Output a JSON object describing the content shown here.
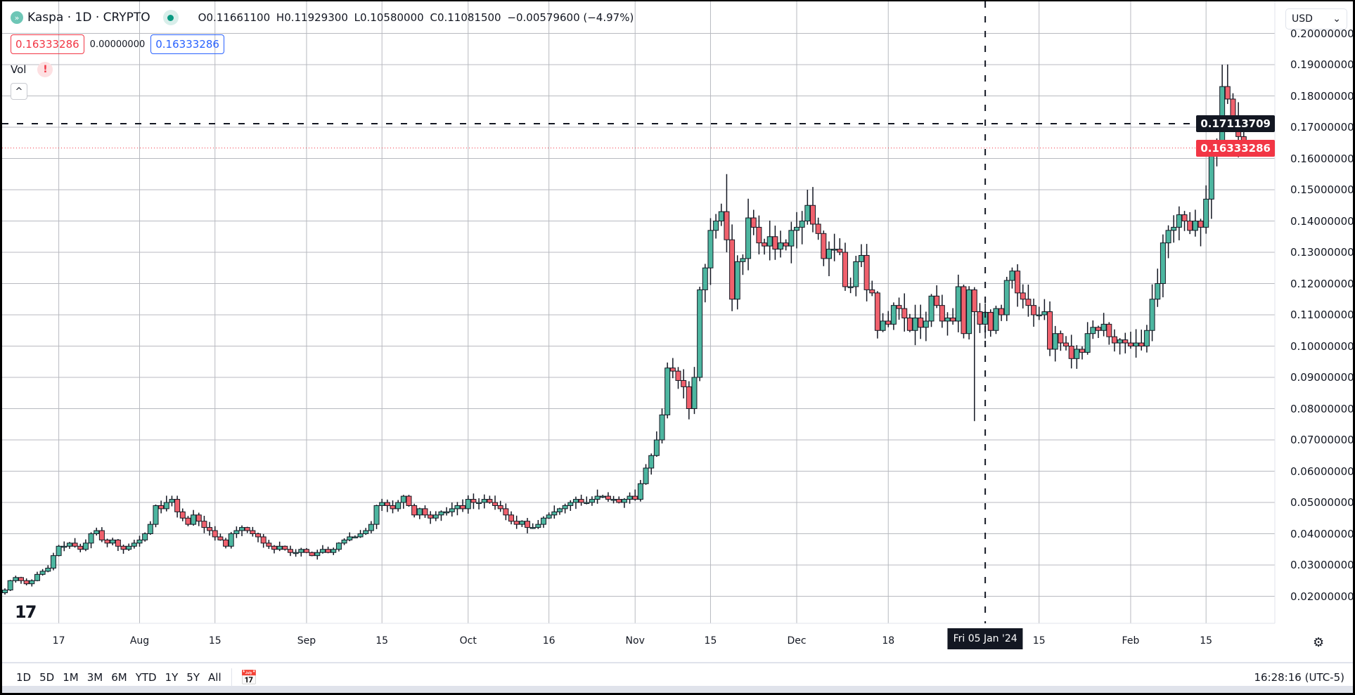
{
  "header": {
    "symbol": "Kaspa · 1D · CRYPTO",
    "ohlc": {
      "open": "O0.11661100",
      "high": "H0.11929300",
      "low": "L0.10580000",
      "close": "C0.11081500",
      "change": "−0.00579600 (−4.97%)"
    },
    "bid_badge": "0.16333286",
    "spread": "0.00000000",
    "ask_badge": "0.16333286",
    "indicator": "Vol",
    "indicator_warning": "!",
    "collapse": "^"
  },
  "price_axis": {
    "currency": "USD",
    "ticks": [
      "0.20000000",
      "0.19000000",
      "0.18000000",
      "0.17000000",
      "0.16000000",
      "0.15000000",
      "0.14000000",
      "0.13000000",
      "0.12000000",
      "0.11000000",
      "0.10000000",
      "0.09000000",
      "0.08000000",
      "0.07000000",
      "0.06000000",
      "0.05000000",
      "0.04000000",
      "0.03000000",
      "0.02000000"
    ],
    "crosshair_price": "0.17113709",
    "last_price": "0.16333286"
  },
  "time_axis": {
    "labels": [
      {
        "text": "17",
        "date": "2023-07-17"
      },
      {
        "text": "Aug",
        "date": "2023-08-01"
      },
      {
        "text": "15",
        "date": "2023-08-15"
      },
      {
        "text": "Sep",
        "date": "2023-09-01"
      },
      {
        "text": "15",
        "date": "2023-09-15"
      },
      {
        "text": "Oct",
        "date": "2023-10-01"
      },
      {
        "text": "16",
        "date": "2023-10-16"
      },
      {
        "text": "Nov",
        "date": "2023-11-01"
      },
      {
        "text": "15",
        "date": "2023-11-15"
      },
      {
        "text": "Dec",
        "date": "2023-12-01"
      },
      {
        "text": "18",
        "date": "2023-12-18"
      },
      {
        "text": "15",
        "date": "2024-01-15"
      },
      {
        "text": "Feb",
        "date": "2024-02-01"
      },
      {
        "text": "15",
        "date": "2024-02-15"
      }
    ],
    "crosshair_label": "Fri 05 Jan '24",
    "crosshair_date": "2024-01-05"
  },
  "toolbar": {
    "ranges": [
      "1D",
      "5D",
      "1M",
      "3M",
      "6M",
      "YTD",
      "1Y",
      "5Y",
      "All"
    ],
    "clock": "16:28:16 (UTC-5)"
  },
  "colors": {
    "up": "#4db6a0",
    "down": "#f0616d",
    "outline": "#131722",
    "last_price": "#f23645",
    "grid": "#b8bac0"
  },
  "icons": {
    "symbol": "kaspa-logo-icon",
    "market_status": "live-dot-icon",
    "goto_date": "calendar-goto-icon",
    "settings": "gear-icon",
    "logo": "tradingview-logo-icon"
  },
  "chart_data": {
    "type": "candlestick",
    "start_date": "2023-07-07",
    "interval": "1D",
    "ylim": [
      0.01,
      0.205
    ],
    "grid": true,
    "closes": [
      0.022,
      0.025,
      0.026,
      0.025,
      0.024,
      0.025,
      0.027,
      0.028,
      0.029,
      0.033,
      0.036,
      0.036,
      0.037,
      0.036,
      0.035,
      0.037,
      0.04,
      0.041,
      0.038,
      0.037,
      0.038,
      0.036,
      0.035,
      0.036,
      0.037,
      0.038,
      0.04,
      0.043,
      0.049,
      0.048,
      0.05,
      0.051,
      0.047,
      0.045,
      0.043,
      0.046,
      0.044,
      0.042,
      0.041,
      0.039,
      0.038,
      0.036,
      0.04,
      0.041,
      0.042,
      0.041,
      0.04,
      0.039,
      0.037,
      0.036,
      0.035,
      0.036,
      0.035,
      0.034,
      0.034,
      0.035,
      0.034,
      0.033,
      0.034,
      0.035,
      0.034,
      0.035,
      0.037,
      0.038,
      0.039,
      0.039,
      0.04,
      0.041,
      0.043,
      0.049,
      0.05,
      0.049,
      0.048,
      0.05,
      0.052,
      0.049,
      0.046,
      0.048,
      0.046,
      0.045,
      0.046,
      0.047,
      0.047,
      0.048,
      0.049,
      0.048,
      0.051,
      0.05,
      0.05,
      0.051,
      0.05,
      0.049,
      0.048,
      0.046,
      0.044,
      0.043,
      0.044,
      0.042,
      0.042,
      0.043,
      0.045,
      0.046,
      0.047,
      0.048,
      0.049,
      0.05,
      0.051,
      0.05,
      0.05,
      0.051,
      0.052,
      0.052,
      0.051,
      0.051,
      0.05,
      0.051,
      0.052,
      0.051,
      0.056,
      0.061,
      0.065,
      0.07,
      0.078,
      0.093,
      0.092,
      0.089,
      0.087,
      0.08,
      0.09,
      0.118,
      0.125,
      0.137,
      0.14,
      0.143,
      0.134,
      0.115,
      0.127,
      0.128,
      0.141,
      0.138,
      0.133,
      0.132,
      0.135,
      0.131,
      0.133,
      0.132,
      0.137,
      0.138,
      0.14,
      0.145,
      0.139,
      0.136,
      0.128,
      0.131,
      0.131,
      0.13,
      0.119,
      0.119,
      0.127,
      0.129,
      0.118,
      0.117,
      0.105,
      0.108,
      0.107,
      0.113,
      0.112,
      0.109,
      0.105,
      0.109,
      0.106,
      0.108,
      0.116,
      0.113,
      0.108,
      0.109,
      0.108,
      0.119,
      0.104,
      0.118,
      0.111,
      0.107,
      0.1108,
      0.105,
      0.112,
      0.11,
      0.121,
      0.124,
      0.117,
      0.115,
      0.113,
      0.11,
      0.11,
      0.111,
      0.099,
      0.104,
      0.101,
      0.1,
      0.096,
      0.099,
      0.098,
      0.104,
      0.106,
      0.105,
      0.107,
      0.103,
      0.101,
      0.102,
      0.101,
      0.1,
      0.101,
      0.1,
      0.105,
      0.115,
      0.12,
      0.133,
      0.137,
      0.138,
      0.142,
      0.14,
      0.137,
      0.14,
      0.138,
      0.147,
      0.163,
      0.164,
      0.183,
      0.179,
      0.172,
      0.167,
      0.16333
    ],
    "notable_wicks": [
      {
        "date": "2023-11-18",
        "high": 0.155
      },
      {
        "date": "2023-12-03",
        "high": 0.15
      },
      {
        "date": "2024-01-03",
        "low": 0.076
      },
      {
        "date": "2024-02-18",
        "high": 0.19
      }
    ]
  }
}
